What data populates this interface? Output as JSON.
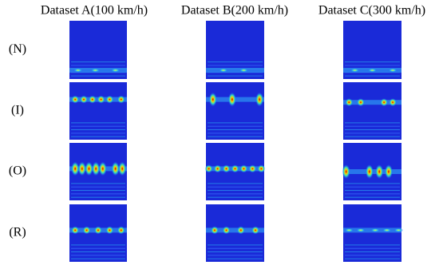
{
  "columns": [
    "Dataset A(100 km/h)",
    "Dataset B(200 km/h)",
    "Dataset C(300 km/h)"
  ],
  "rows": [
    "(N)",
    "(I)",
    "(O)",
    "(R)"
  ]
}
